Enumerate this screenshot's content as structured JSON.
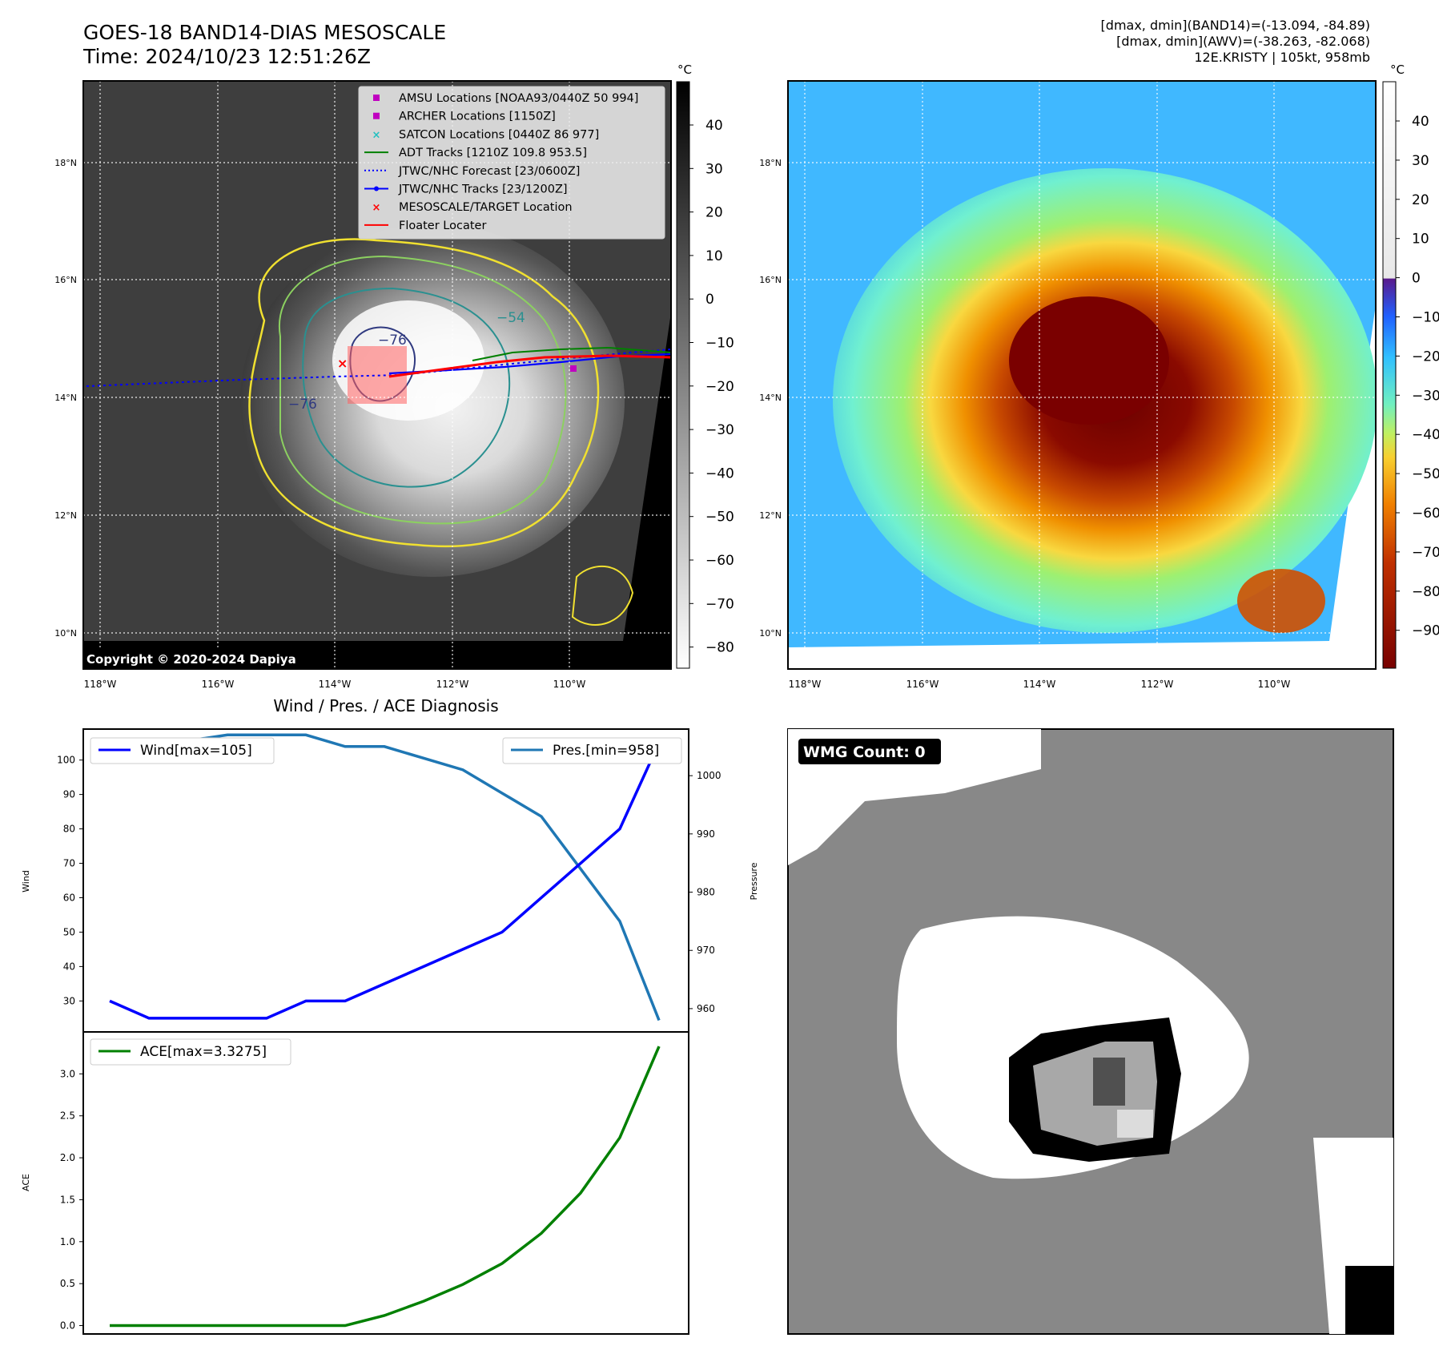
{
  "header": {
    "title_line1": "GOES-18 BAND14-DIAS MESOSCALE",
    "title_line2": "Time: 2024/10/23 12:51:26Z",
    "info_line1": "[dmax, dmin](BAND14)=(-13.094, -84.89)",
    "info_line2": "[dmax, dmin](AWV)=(-38.263, -82.068)",
    "info_line3": "12E.KRISTY | 105kt, 958mb"
  },
  "map_axes": {
    "lat_ticks": [
      "18°N",
      "16°N",
      "14°N",
      "12°N",
      "10°N"
    ],
    "lon_ticks": [
      "118°W",
      "116°W",
      "114°W",
      "112°W",
      "110°W"
    ]
  },
  "panel_ir": {
    "colorbar_unit": "°C",
    "colorbar_ticks": [
      "40",
      "30",
      "20",
      "10",
      "0",
      "−10",
      "−20",
      "−30",
      "−40",
      "−50",
      "−60",
      "−70",
      "−80"
    ],
    "copyright": "Copyright © 2020-2024 Dapiya",
    "contour_labels": [
      "−76",
      "−54",
      "−76"
    ],
    "legend": [
      {
        "label": "AMSU Locations [NOAA93/0440Z 50 994]",
        "color": "#c000c0",
        "kind": "square"
      },
      {
        "label": "ARCHER Locations [1150Z]",
        "color": "#c000c0",
        "kind": "square"
      },
      {
        "label": "SATCON Locations [0440Z 86 977]",
        "color": "#20c0c0",
        "kind": "x"
      },
      {
        "label": "ADT Tracks [1210Z 109.8 953.5]",
        "color": "#008000",
        "kind": "line"
      },
      {
        "label": "JTWC/NHC Forecast [23/0600Z]",
        "color": "#0000ff",
        "kind": "dotted"
      },
      {
        "label": "JTWC/NHC Tracks [23/1200Z]",
        "color": "#0000ff",
        "kind": "line-dot"
      },
      {
        "label": "MESOSCALE/TARGET Location",
        "color": "#ff0000",
        "kind": "x"
      },
      {
        "label": "Floater Locater",
        "color": "#ff0000",
        "kind": "line"
      }
    ]
  },
  "panel_awv": {
    "colorbar_unit": "°C",
    "colorbar_ticks": [
      "40",
      "30",
      "20",
      "10",
      "0",
      "−10",
      "−20",
      "−30",
      "−40",
      "−50",
      "−60",
      "−70",
      "−80",
      "−90"
    ]
  },
  "panel_wmg": {
    "label": "WMG Count: 0"
  },
  "chart_data": [
    {
      "type": "line",
      "title": "Wind / Pres. / ACE Diagnosis",
      "ylabel": "Wind",
      "ylabel_right": "Pressure",
      "ylim": [
        21,
        109
      ],
      "ylim_right": [
        956,
        1008
      ],
      "yticks": [
        30,
        40,
        50,
        60,
        70,
        80,
        90,
        100
      ],
      "yticks_right": [
        960,
        970,
        980,
        990,
        1000
      ],
      "x": [
        0,
        1,
        2,
        3,
        4,
        5,
        6,
        7,
        8,
        9,
        10,
        11,
        12,
        13,
        14
      ],
      "series": [
        {
          "name": "Wind[max=105]",
          "axis": "left",
          "color": "#0000ff",
          "values": [
            30,
            25,
            25,
            25,
            25,
            30,
            30,
            35,
            40,
            45,
            50,
            60,
            70,
            80,
            105
          ]
        },
        {
          "name": "Pres.[min=958]",
          "axis": "right",
          "color": "#1f77b4",
          "values": [
            1006,
            1006,
            1006,
            1007,
            1007,
            1007,
            1005,
            1005,
            1003,
            1001,
            997,
            993,
            984,
            975,
            958
          ]
        }
      ]
    },
    {
      "type": "line",
      "ylabel": "ACE",
      "ylim": [
        -0.1,
        3.5
      ],
      "yticks": [
        "0.0",
        "0.5",
        "1.0",
        "1.5",
        "2.0",
        "2.5",
        "3.0"
      ],
      "x": [
        0,
        1,
        2,
        3,
        4,
        5,
        6,
        7,
        8,
        9,
        10,
        11,
        12,
        13,
        14
      ],
      "series": [
        {
          "name": "ACE[max=3.3275]",
          "color": "#008000",
          "values": [
            0,
            0,
            0,
            0,
            0,
            0,
            0,
            0.12,
            0.29,
            0.49,
            0.74,
            1.1,
            1.58,
            2.24,
            3.3275
          ]
        }
      ]
    }
  ]
}
